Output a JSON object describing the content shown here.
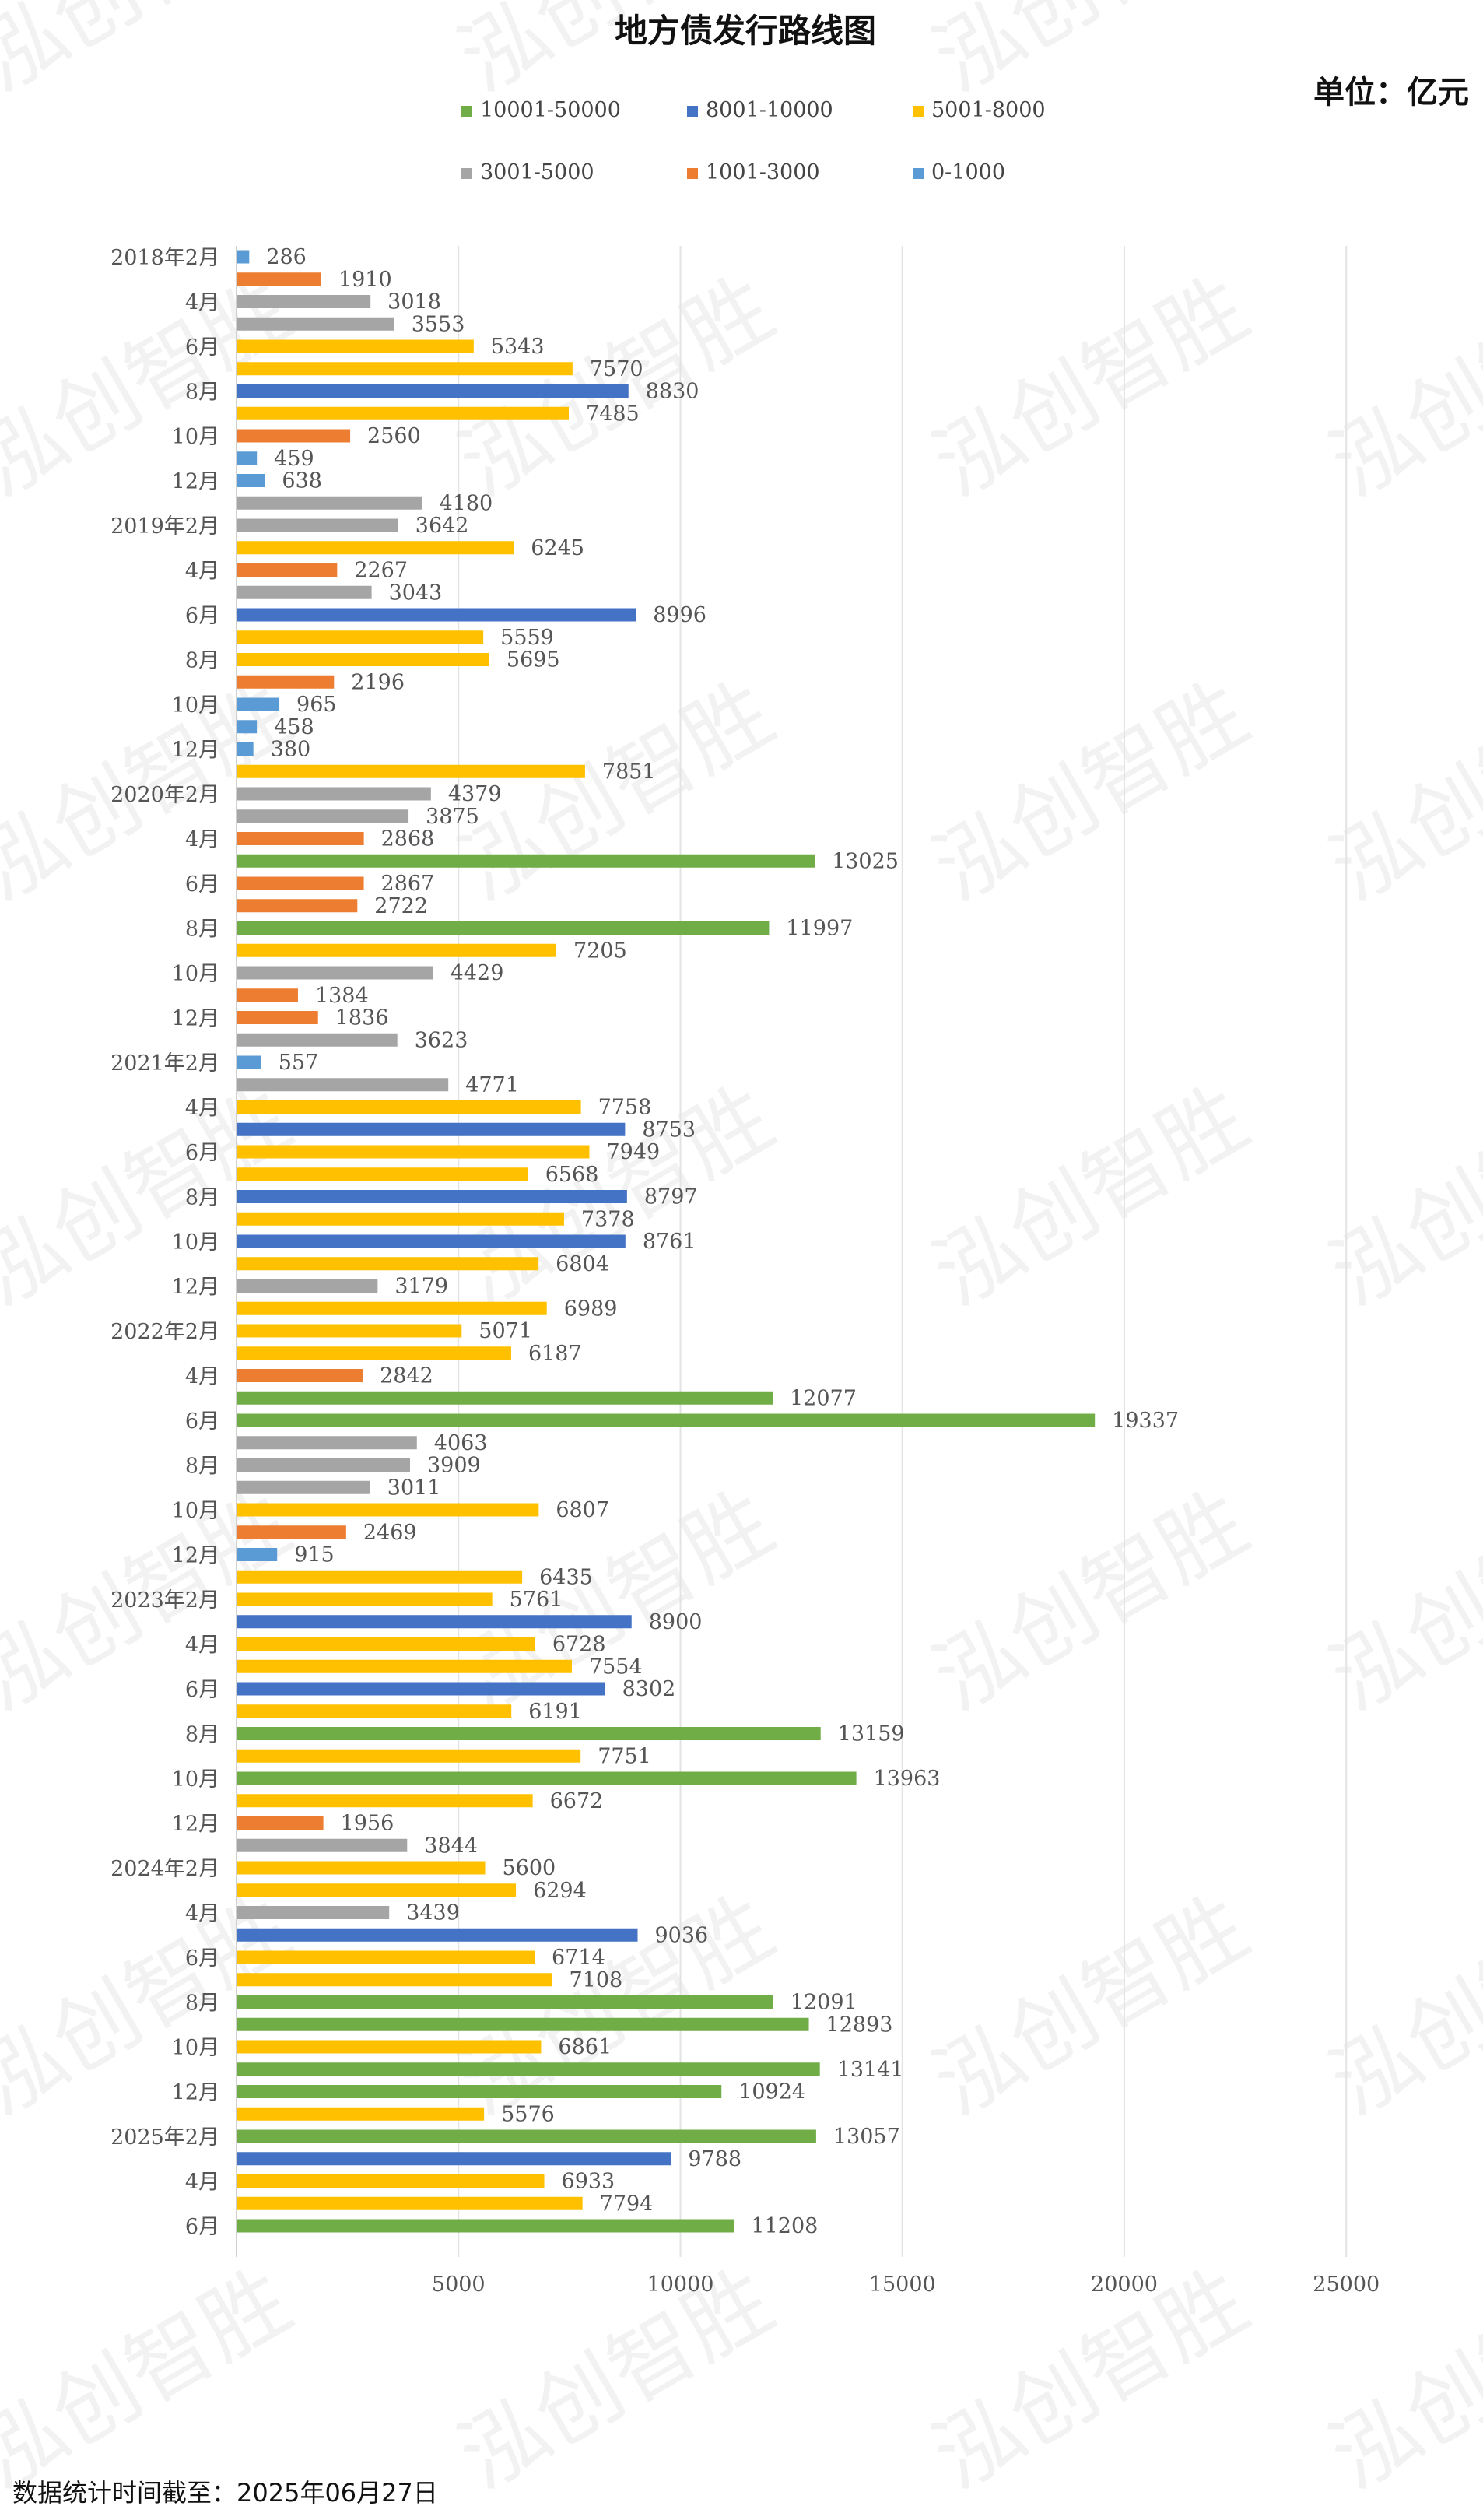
{
  "header": {
    "title": "地方债发行路线图",
    "unit": "单位：亿元"
  },
  "footer": {
    "note": "数据统计时间截至：2025年06月27日"
  },
  "watermark": {
    "text": "泓创智胜"
  },
  "legend": {
    "items": [
      {
        "label": "10001-50000",
        "color": "#70ad47"
      },
      {
        "label": "8001-10000",
        "color": "#4472c4"
      },
      {
        "label": "5001-8000",
        "color": "#ffc000"
      },
      {
        "label": "3001-5000",
        "color": "#a5a5a5"
      },
      {
        "label": "1001-3000",
        "color": "#ed7d31"
      },
      {
        "label": "0-1000",
        "color": "#5b9bd5"
      }
    ]
  },
  "chart_data": {
    "type": "bar",
    "orientation": "horizontal",
    "title": "地方债发行路线图",
    "unit": "单位：亿元",
    "xlim": [
      0,
      25000
    ],
    "xticks": [
      5000,
      10000,
      15000,
      20000,
      25000
    ],
    "grid": "vertical",
    "legend_position": "top",
    "categories": [
      "2018年2月",
      "",
      "4月",
      "",
      "6月",
      "",
      "8月",
      "",
      "10月",
      "",
      "12月",
      "",
      "2019年2月",
      "",
      "4月",
      "",
      "6月",
      "",
      "8月",
      "",
      "10月",
      "",
      "12月",
      "",
      "2020年2月",
      "",
      "4月",
      "",
      "6月",
      "",
      "8月",
      "",
      "10月",
      "",
      "12月",
      "",
      "2021年2月",
      "",
      "4月",
      "",
      "6月",
      "",
      "8月",
      "",
      "10月",
      "",
      "12月",
      "",
      "2022年2月",
      "",
      "4月",
      "",
      "6月",
      "",
      "8月",
      "",
      "10月",
      "",
      "12月",
      "",
      "2023年2月",
      "",
      "4月",
      "",
      "6月",
      "",
      "8月",
      "",
      "10月",
      "",
      "12月",
      "",
      "2024年2月",
      "",
      "4月",
      "",
      "6月",
      "",
      "8月",
      "",
      "10月",
      "",
      "12月",
      "",
      "2025年2月",
      "",
      "4月",
      "",
      "6月"
    ],
    "values": [
      286,
      1910,
      3018,
      3553,
      5343,
      7570,
      8830,
      7485,
      2560,
      459,
      638,
      4180,
      3642,
      6245,
      2267,
      3043,
      8996,
      5559,
      5695,
      2196,
      965,
      458,
      380,
      7851,
      4379,
      3875,
      2868,
      13025,
      2867,
      2722,
      11997,
      7205,
      4429,
      1384,
      1836,
      3623,
      557,
      4771,
      7758,
      8753,
      7949,
      6568,
      8797,
      7378,
      8761,
      6804,
      3179,
      6989,
      5071,
      6187,
      2842,
      12077,
      19337,
      4063,
      3909,
      3011,
      6807,
      2469,
      915,
      6435,
      5761,
      8900,
      6728,
      7554,
      8302,
      6191,
      13159,
      7751,
      13963,
      6672,
      1956,
      3844,
      5600,
      6294,
      3439,
      9036,
      6714,
      7108,
      12091,
      12893,
      6861,
      13141,
      10924,
      5576,
      13057,
      9788,
      6933,
      7794,
      11208
    ]
  }
}
